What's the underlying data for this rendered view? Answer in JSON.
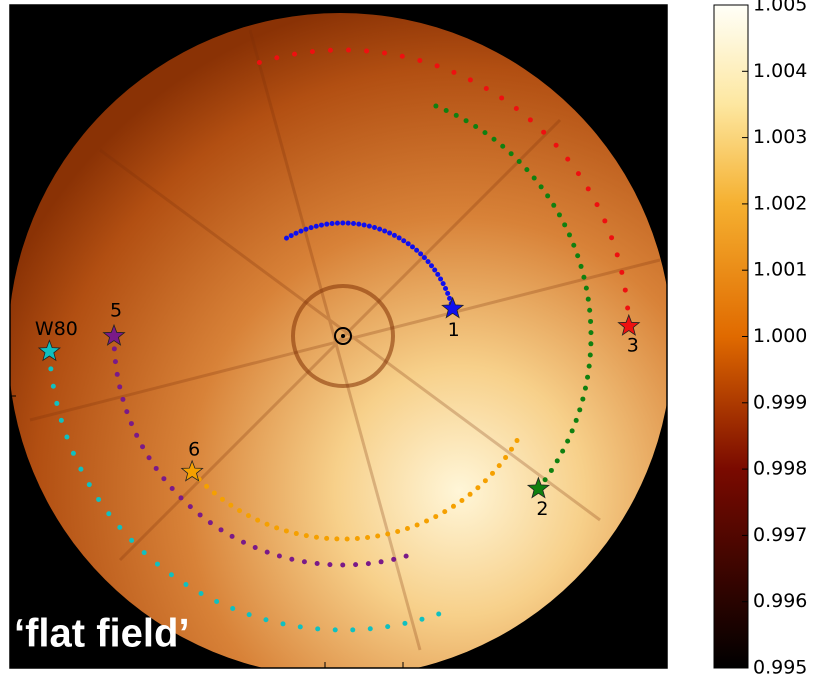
{
  "chart_data": {
    "type": "image",
    "caption": "‘flat field’",
    "star_labels": [
      "1",
      "2",
      "3",
      "5",
      "6",
      "W80"
    ],
    "colorbar": {
      "ylim": [
        0.995,
        1.005
      ],
      "yticks": [
        0.995,
        0.996,
        0.997,
        0.998,
        0.999,
        {
          "value": 1,
          "label": "1.000"
        },
        1.001,
        1.002,
        1.003,
        1.004,
        1.005
      ]
    }
  }
}
